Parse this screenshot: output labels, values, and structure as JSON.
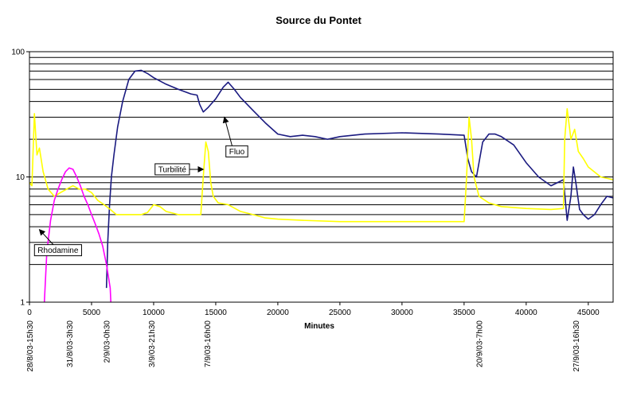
{
  "chart_data": {
    "type": "line",
    "title": "Source du Pontet",
    "xlabel": "Minutes",
    "ylabel": "",
    "xlim": [
      0,
      47000
    ],
    "ylim": [
      1,
      100
    ],
    "y_scale": "log",
    "grid": "horizontal",
    "x_ticks": [
      0,
      5000,
      10000,
      15000,
      20000,
      25000,
      30000,
      35000,
      40000,
      45000
    ],
    "x_tick_labels": [
      "0",
      "5000",
      "10000",
      "15000",
      "20000",
      "25000",
      "30000",
      "35000",
      "40000",
      "45000"
    ],
    "y_tick_labels": [
      {
        "value": 1,
        "label": "1"
      },
      {
        "value": 10,
        "label": "10"
      },
      {
        "value": 100,
        "label": "100"
      }
    ],
    "date_labels": [
      {
        "x": 0,
        "label": "28/8/03-15h30"
      },
      {
        "x": 3200,
        "label": "31/8/03-3h30"
      },
      {
        "x": 6200,
        "label": "2/9/03-0h30"
      },
      {
        "x": 9800,
        "label": "3/9/03-21h30"
      },
      {
        "x": 14300,
        "label": "7/9/03-16h00"
      },
      {
        "x": 36200,
        "label": "20/9/03-7h00"
      },
      {
        "x": 44000,
        "label": "27/9/03-16h30"
      }
    ],
    "annotations": [
      {
        "label": "Fluo",
        "x": 16700,
        "y": 16,
        "arrow_to_x": 15700,
        "arrow_to_y": 30
      },
      {
        "label": "Turbilité",
        "x": 11500,
        "y": 11.5,
        "arrow_to_x": 14000,
        "arrow_to_y": 11.5
      },
      {
        "label": "Rhodamine",
        "x": 2300,
        "y": 2.6,
        "arrow_to_x": 800,
        "arrow_to_y": 3.8
      }
    ],
    "series": [
      {
        "name": "Fluo",
        "color": "#1a1a80",
        "x": [
          6200,
          6300,
          6450,
          6600,
          6800,
          7100,
          7500,
          8000,
          8500,
          9000,
          9500,
          10000,
          11000,
          12000,
          13000,
          13500,
          13700,
          14000,
          14400,
          15000,
          15600,
          16000,
          16500,
          17000,
          18000,
          19000,
          20000,
          21000,
          22000,
          23000,
          24000,
          25000,
          27000,
          30000,
          33000,
          35000,
          35300,
          35600,
          36000,
          36500,
          37000,
          37500,
          38000,
          39000,
          40000,
          41000,
          42000,
          43000,
          43300,
          43600,
          43800,
          44000,
          44300,
          44600,
          45000,
          45500,
          46000,
          46500,
          47000
        ],
        "y": [
          1.3,
          3,
          6,
          10,
          15,
          25,
          40,
          60,
          70,
          71,
          67,
          62,
          55,
          50,
          46,
          45,
          38,
          33,
          36,
          42,
          52,
          57,
          50,
          43,
          34,
          27,
          22,
          21,
          21.5,
          21,
          20,
          21,
          22,
          22.5,
          22,
          21.5,
          14,
          11,
          10,
          19,
          22,
          22,
          21,
          18,
          13,
          10,
          8.5,
          9.5,
          4.5,
          7,
          12,
          9,
          5.5,
          5,
          4.6,
          5,
          6,
          7,
          6.8
        ]
      },
      {
        "name": "Turbilité",
        "color": "#ffff00",
        "x": [
          0,
          200,
          400,
          600,
          800,
          1100,
          1500,
          2000,
          2500,
          3000,
          3500,
          4000,
          4500,
          5000,
          5500,
          6000,
          6500,
          7000,
          8000,
          9000,
          9500,
          10000,
          10500,
          11000,
          12000,
          13000,
          13800,
          14000,
          14200,
          14400,
          14600,
          14800,
          15200,
          16000,
          17000,
          18000,
          19000,
          20000,
          22000,
          25000,
          28000,
          31000,
          34000,
          35000,
          35200,
          35400,
          35600,
          35800,
          36200,
          37000,
          38000,
          40000,
          42000,
          43000,
          43100,
          43300,
          43600,
          43900,
          44200,
          44600,
          45000,
          46000,
          47000
        ],
        "y": [
          9,
          8.5,
          32,
          15,
          17,
          11,
          8,
          7,
          7.5,
          8,
          8.5,
          8,
          8,
          7.5,
          6.5,
          6,
          5.5,
          5,
          5,
          5,
          5.2,
          6,
          5.8,
          5.3,
          5,
          5,
          5,
          10,
          19,
          16,
          9,
          7,
          6.2,
          6,
          5.3,
          5,
          4.7,
          4.6,
          4.5,
          4.4,
          4.4,
          4.4,
          4.4,
          4.4,
          10,
          30,
          20,
          10,
          7,
          6.2,
          5.8,
          5.6,
          5.5,
          5.6,
          20,
          35,
          20,
          24,
          16,
          14,
          12,
          10,
          9.5
        ]
      },
      {
        "name": "Rhodamine",
        "color": "#ff00ff",
        "x": [
          1200,
          1400,
          1700,
          2000,
          2300,
          2600,
          2900,
          3200,
          3500,
          3800,
          4100,
          4400,
          4700,
          5000,
          5300,
          5600,
          5900,
          6200,
          6500,
          6550
        ],
        "y": [
          1,
          2.5,
          4.5,
          6.5,
          8,
          9.5,
          11,
          11.8,
          11.5,
          10,
          8.5,
          7,
          6,
          5,
          4.2,
          3.5,
          2.8,
          2,
          1.3,
          1
        ]
      }
    ]
  }
}
